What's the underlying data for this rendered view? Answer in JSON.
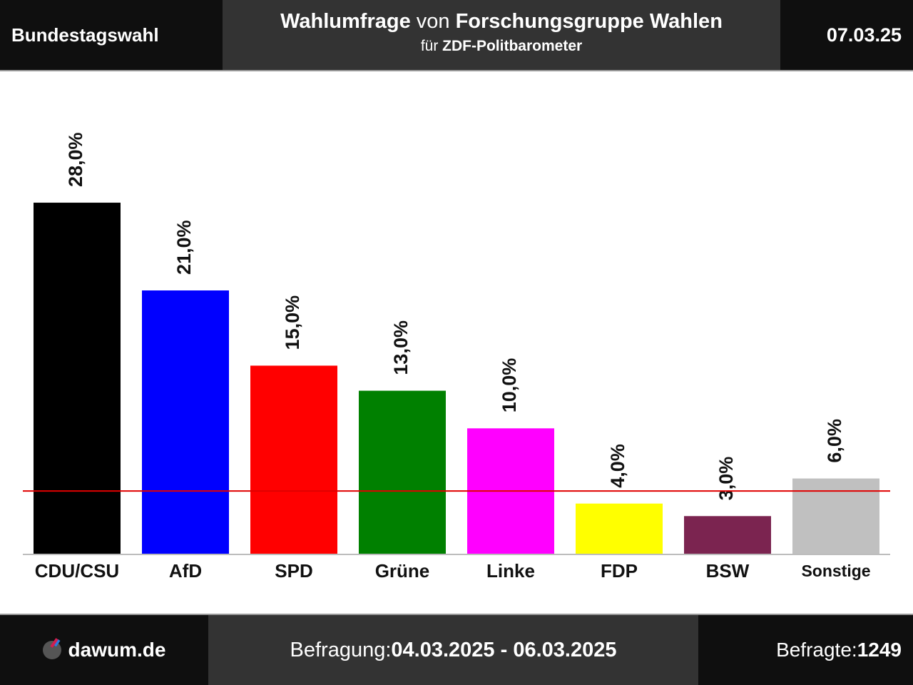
{
  "header": {
    "left_label": "Bundestagswahl",
    "title_part1": "Wahlumfrage",
    "title_part2": " von ",
    "title_part3": "Forschungsgruppe Wahlen",
    "subtitle_part1": "für ",
    "subtitle_part2": "ZDF-Politbarometer",
    "date": "07.03.25"
  },
  "footer": {
    "site": "dawum.de",
    "survey_label": "Befragung: ",
    "survey_period": "04.03.2025 - 06.03.2025",
    "respondents_label": "Befragte: ",
    "respondents_value": "1249"
  },
  "chart_data": {
    "type": "bar",
    "categories": [
      "CDU/CSU",
      "AfD",
      "SPD",
      "Grüne",
      "Linke",
      "FDP",
      "BSW",
      "Sonstige"
    ],
    "values": [
      28.0,
      21.0,
      15.0,
      13.0,
      10.0,
      4.0,
      3.0,
      6.0
    ],
    "value_labels": [
      "28,0%",
      "21,0%",
      "15,0%",
      "13,0%",
      "10,0%",
      "4,0%",
      "3,0%",
      "6,0%"
    ],
    "colors": [
      "#000000",
      "#0000ff",
      "#ff0000",
      "#008000",
      "#ff00ff",
      "#ffff00",
      "#7b2450",
      "#c0c0c0"
    ],
    "threshold": 5,
    "threshold_color": "#e00000",
    "ylim": [
      0,
      30
    ],
    "grid": false
  }
}
